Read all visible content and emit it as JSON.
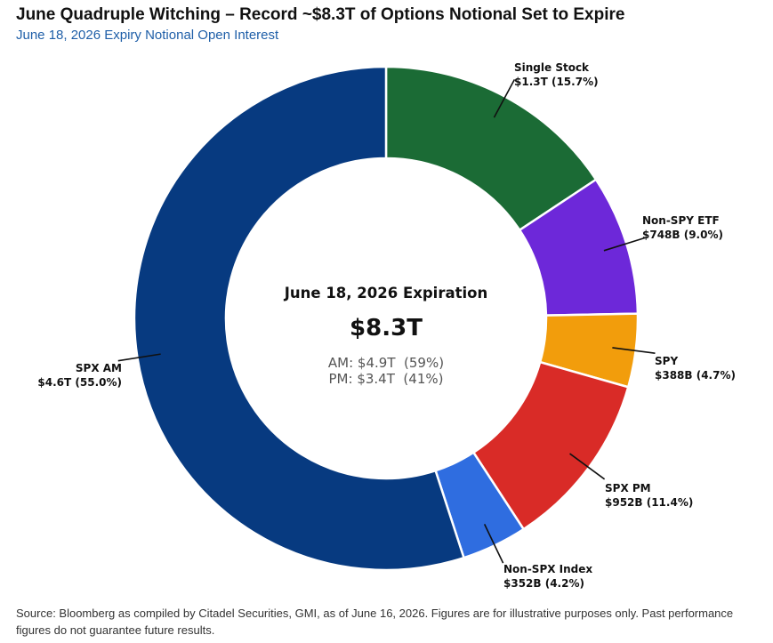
{
  "chart_data": {
    "type": "pie",
    "title": "June Quadruple Witching – Record ~$8.3T of Options Notional Set to Expire",
    "subtitle": "June 18, 2026 Expiry Notional Open Interest",
    "unit": "$T",
    "center": {
      "title": "June 18, 2026 Expiration",
      "total": "$8.3T",
      "am_line": "AM: $4.9T  (59%)",
      "pm_line": "PM: $3.4T  (41%)"
    },
    "slices": [
      {
        "name": "Single Stock",
        "value": 1.3,
        "percent": 15.7,
        "label": "$1.3T (15.7%)",
        "color": "#1b6b35"
      },
      {
        "name": "Non-SPY ETF",
        "value": 0.748,
        "percent": 9.0,
        "label": "$748B (9.0%)",
        "color": "#6d28d9"
      },
      {
        "name": "SPY",
        "value": 0.388,
        "percent": 4.7,
        "label": "$388B (4.7%)",
        "color": "#f29d0c"
      },
      {
        "name": "SPX PM",
        "value": 0.952,
        "percent": 11.4,
        "label": "$952B (11.4%)",
        "color": "#d92b27"
      },
      {
        "name": "Non-SPX Index",
        "value": 0.352,
        "percent": 4.2,
        "label": "$352B (4.2%)",
        "color": "#2f6de0"
      },
      {
        "name": "SPX AM",
        "value": 4.6,
        "percent": 55.0,
        "label": "$4.6T (55.0%)",
        "color": "#073a80"
      }
    ],
    "legend": "none"
  },
  "footnote": "Source: Bloomberg as compiled by Citadel Securities, GMI, as of June 16, 2026. Figures are for illustrative purposes only. Past performance figures do not guarantee future results."
}
